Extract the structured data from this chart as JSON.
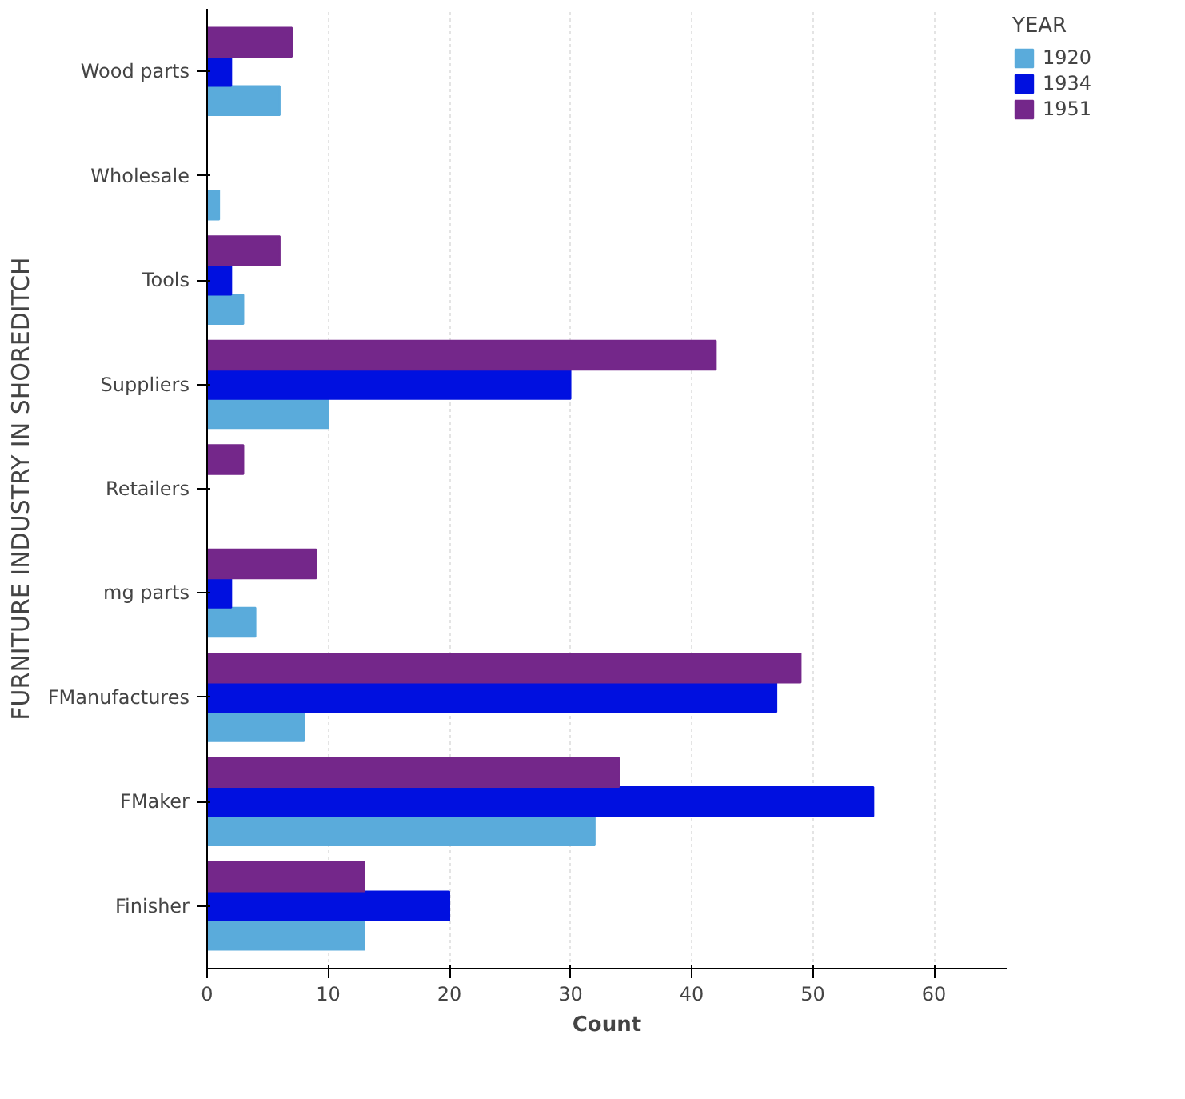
{
  "chart_data": {
    "type": "bar",
    "orientation": "horizontal",
    "xlabel": "Count",
    "ylabel": "FURNITURE INDUSTRY IN SHOREDITCH",
    "legend_title": "YEAR",
    "categories": [
      "Wood parts",
      "Wholesale",
      "Tools",
      "Suppliers",
      "Retailers",
      "mg parts",
      "FManufactures",
      "FMaker",
      "Finisher"
    ],
    "series": [
      {
        "name": "1920",
        "color": "#5aabdb",
        "values": [
          6,
          1,
          3,
          10,
          null,
          4,
          8,
          32,
          13
        ]
      },
      {
        "name": "1934",
        "color": "#0010e0",
        "values": [
          2,
          null,
          2,
          30,
          null,
          2,
          47,
          55,
          20
        ]
      },
      {
        "name": "1951",
        "color": "#74278a",
        "values": [
          7,
          null,
          6,
          42,
          3,
          9,
          49,
          34,
          13
        ]
      }
    ],
    "xlim": [
      0,
      66
    ],
    "xticks": [
      0,
      10,
      20,
      30,
      40,
      50,
      60
    ],
    "grid": "x",
    "legend": "top right"
  }
}
